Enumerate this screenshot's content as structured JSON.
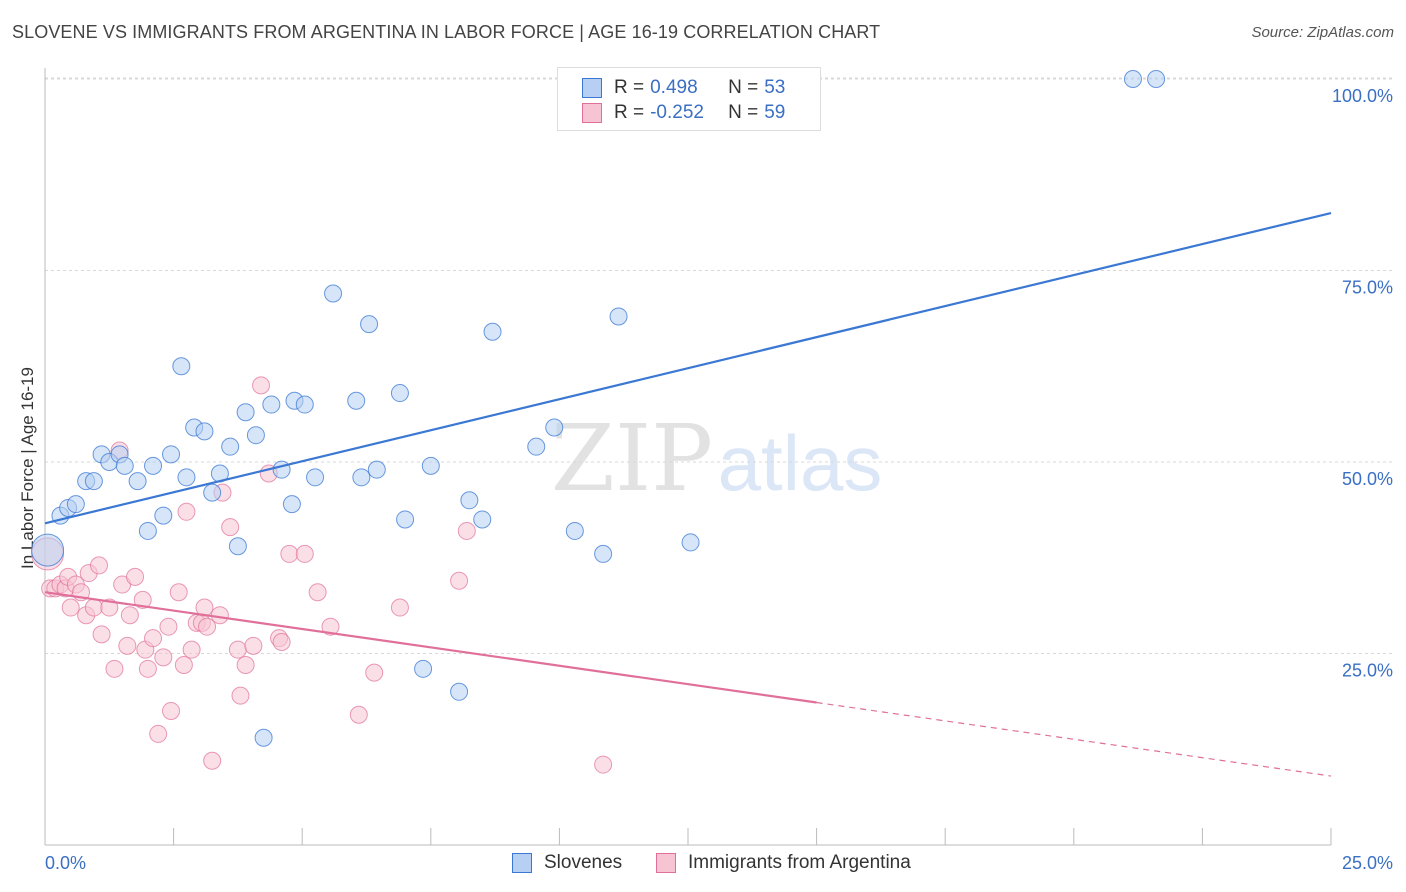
{
  "title": "SLOVENE VS IMMIGRANTS FROM ARGENTINA IN LABOR FORCE | AGE 16-19 CORRELATION CHART",
  "source": "Source: ZipAtlas.com",
  "watermark": {
    "part1": "ZIP",
    "part2": "atlas"
  },
  "colors": {
    "blue": "#3a78d4",
    "blue_fill": "#b7cff2",
    "blue_text": "#3a6fc4",
    "pink": "#e0709a",
    "pink_fill": "#f7c4d4",
    "grid": "#d8d8d8",
    "axis": "#bbbbbb"
  },
  "legend_top": [
    {
      "r_label": "R =",
      "r_value": "0.498",
      "n_label": "N =",
      "n_value": "53",
      "color": "blue"
    },
    {
      "r_label": "R =",
      "r_value": "-0.252",
      "n_label": "N =",
      "n_value": "59",
      "color": "pink"
    }
  ],
  "legend_bottom": [
    {
      "label": "Slovenes",
      "color": "blue"
    },
    {
      "label": "Immigrants from Argentina",
      "color": "pink"
    }
  ],
  "chart_data": {
    "type": "scatter",
    "ylabel": "In Labor Force | Age 16-19",
    "xlim": [
      0,
      25
    ],
    "ylim": [
      0,
      102
    ],
    "x_tick_labels": [
      {
        "x": 0,
        "label": "0.0%"
      },
      {
        "x": 25,
        "label": "25.0%"
      }
    ],
    "y_tick_labels": [
      {
        "y": 25,
        "label": "25.0%"
      },
      {
        "y": 50,
        "label": "50.0%"
      },
      {
        "y": 75,
        "label": "75.0%"
      },
      {
        "y": 100,
        "label": "100.0%"
      }
    ],
    "x_minor_ticks": [
      0,
      2.5,
      5,
      7.5,
      10,
      12.5,
      15,
      17.5,
      20,
      22.5,
      25
    ],
    "gridlines_y": [
      25,
      50,
      75,
      100
    ],
    "series": [
      {
        "name": "Slovenes",
        "color": "blue",
        "trend": {
          "x0": 0,
          "y0": 42,
          "x1": 25,
          "y1": 82.5,
          "dashed_from": null
        },
        "points": [
          [
            0.05,
            38.5
          ],
          [
            0.3,
            43
          ],
          [
            0.45,
            44
          ],
          [
            0.6,
            44.5
          ],
          [
            0.8,
            47.5
          ],
          [
            0.95,
            47.5
          ],
          [
            1.1,
            51
          ],
          [
            1.25,
            50
          ],
          [
            1.45,
            51
          ],
          [
            1.55,
            49.5
          ],
          [
            1.8,
            47.5
          ],
          [
            2.0,
            41
          ],
          [
            2.1,
            49.5
          ],
          [
            2.3,
            43
          ],
          [
            2.45,
            51
          ],
          [
            2.65,
            62.5
          ],
          [
            2.75,
            48
          ],
          [
            2.9,
            54.5
          ],
          [
            3.1,
            54
          ],
          [
            3.25,
            46
          ],
          [
            3.4,
            48.5
          ],
          [
            3.6,
            52
          ],
          [
            3.75,
            39
          ],
          [
            3.9,
            56.5
          ],
          [
            4.1,
            53.5
          ],
          [
            4.25,
            14
          ],
          [
            4.4,
            57.5
          ],
          [
            4.6,
            49
          ],
          [
            4.8,
            44.5
          ],
          [
            4.85,
            58
          ],
          [
            5.05,
            57.5
          ],
          [
            5.25,
            48
          ],
          [
            5.6,
            72
          ],
          [
            6.05,
            58
          ],
          [
            6.15,
            48
          ],
          [
            6.3,
            68
          ],
          [
            6.45,
            49
          ],
          [
            6.9,
            59
          ],
          [
            7.0,
            42.5
          ],
          [
            7.35,
            23
          ],
          [
            7.5,
            49.5
          ],
          [
            8.05,
            20
          ],
          [
            8.25,
            45
          ],
          [
            8.5,
            42.5
          ],
          [
            8.7,
            67
          ],
          [
            9.55,
            52
          ],
          [
            9.9,
            54.5
          ],
          [
            10.3,
            41
          ],
          [
            10.85,
            38
          ],
          [
            11.15,
            69
          ],
          [
            12.55,
            39.5
          ],
          [
            21.15,
            100
          ],
          [
            21.6,
            100
          ]
        ]
      },
      {
        "name": "Immigrants from Argentina",
        "color": "pink",
        "trend": {
          "x0": 0,
          "y0": 33,
          "x1": 25,
          "y1": 9,
          "dashed_from": 15
        }
      }
    ],
    "pink_points": [
      [
        0.05,
        38
      ],
      [
        0.1,
        33.5
      ],
      [
        0.2,
        33.5
      ],
      [
        0.3,
        34
      ],
      [
        0.4,
        33.5
      ],
      [
        0.45,
        35
      ],
      [
        0.5,
        31
      ],
      [
        0.6,
        34
      ],
      [
        0.7,
        33
      ],
      [
        0.8,
        30
      ],
      [
        0.85,
        35.5
      ],
      [
        0.95,
        31
      ],
      [
        1.05,
        36.5
      ],
      [
        1.1,
        27.5
      ],
      [
        1.25,
        31
      ],
      [
        1.35,
        23
      ],
      [
        1.45,
        51.5
      ],
      [
        1.5,
        34
      ],
      [
        1.6,
        26
      ],
      [
        1.65,
        30
      ],
      [
        1.75,
        35
      ],
      [
        1.9,
        32
      ],
      [
        1.95,
        25.5
      ],
      [
        2.0,
        23
      ],
      [
        2.1,
        27
      ],
      [
        2.2,
        14.5
      ],
      [
        2.3,
        24.5
      ],
      [
        2.4,
        28.5
      ],
      [
        2.45,
        17.5
      ],
      [
        2.6,
        33
      ],
      [
        2.7,
        23.5
      ],
      [
        2.75,
        43.5
      ],
      [
        2.85,
        25.5
      ],
      [
        2.95,
        29
      ],
      [
        3.05,
        29
      ],
      [
        3.1,
        31
      ],
      [
        3.15,
        28.5
      ],
      [
        3.25,
        11
      ],
      [
        3.4,
        30
      ],
      [
        3.45,
        46
      ],
      [
        3.6,
        41.5
      ],
      [
        3.75,
        25.5
      ],
      [
        3.8,
        19.5
      ],
      [
        3.9,
        23.5
      ],
      [
        4.05,
        26
      ],
      [
        4.2,
        60
      ],
      [
        4.35,
        48.5
      ],
      [
        4.55,
        27
      ],
      [
        4.6,
        26.5
      ],
      [
        4.75,
        38
      ],
      [
        5.05,
        38
      ],
      [
        5.3,
        33
      ],
      [
        5.55,
        28.5
      ],
      [
        6.1,
        17
      ],
      [
        6.4,
        22.5
      ],
      [
        6.9,
        31
      ],
      [
        8.05,
        34.5
      ],
      [
        8.2,
        41
      ],
      [
        10.85,
        10.5
      ]
    ]
  }
}
